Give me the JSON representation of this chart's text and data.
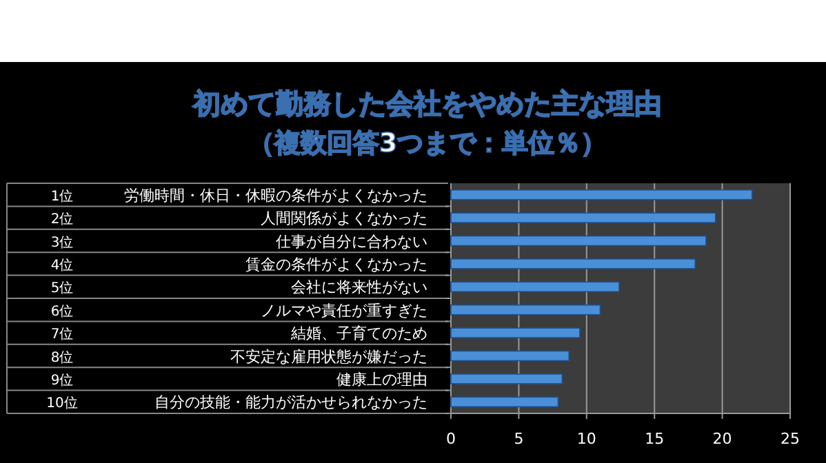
{
  "chart_data": {
    "type": "bar",
    "orientation": "horizontal",
    "title": "初めて勤務した会社をやめた主な理由",
    "subtitle": "（複数回答3つまで：単位％）",
    "categories": [
      "1位 労働時間・休日・休暇の条件がよくなかった",
      "2位 人間関係がよくなかった",
      "3位 仕事が自分に合わない",
      "4位 賃金の条件がよくなかった",
      "5位 会社に将来性がない",
      "6位 ノルマや責任が重すぎた",
      "7位 結婚、子育てのため",
      "8位 不安定な雇用状態が嫌だった",
      "9位 健康上の理由",
      "10位 自分の技能・能力が活かせられなかった"
    ],
    "values": [
      22.2,
      19.5,
      18.8,
      18.0,
      12.4,
      11.0,
      9.5,
      8.7,
      8.2,
      7.9
    ],
    "color": "#4a90d8",
    "xlim": [
      0,
      25
    ],
    "xticks": [
      0,
      5,
      10,
      15,
      20,
      25
    ],
    "grid": "x"
  }
}
